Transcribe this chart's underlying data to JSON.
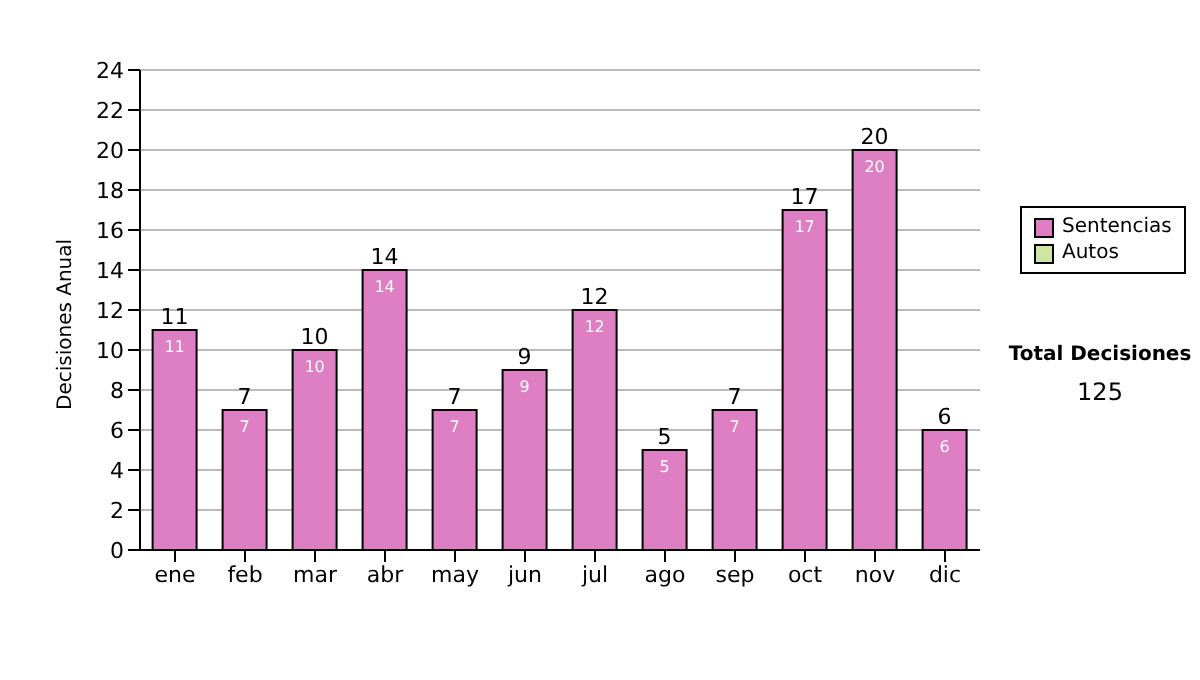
{
  "chart_data": {
    "type": "bar",
    "ylabel": "Decisiones Anual",
    "categories": [
      "ene",
      "feb",
      "mar",
      "abr",
      "may",
      "jun",
      "jul",
      "ago",
      "sep",
      "oct",
      "nov",
      "dic"
    ],
    "series": [
      {
        "name": "Sentencias",
        "color": "#de7fc4",
        "values": [
          11,
          7,
          10,
          14,
          7,
          9,
          12,
          5,
          7,
          17,
          20,
          6
        ],
        "value_labels": [
          "11",
          "7",
          "10",
          "14",
          "7",
          "9",
          "12",
          "5",
          "7",
          "17",
          "20",
          "6"
        ]
      },
      {
        "name": "Autos",
        "color": "#cfe6a0",
        "values": [
          null,
          null,
          null,
          null,
          null,
          null,
          null,
          null,
          null,
          null,
          null,
          null
        ]
      }
    ],
    "stacked": true,
    "totals": [
      "11",
      "7",
      "10",
      "14",
      "7",
      "9",
      "12",
      "5",
      "7",
      "17",
      "20",
      "6"
    ],
    "ylim": [
      0,
      24
    ],
    "yticks": [
      0,
      2,
      4,
      6,
      8,
      10,
      12,
      14,
      16,
      18,
      20,
      22,
      24
    ],
    "grid": "y",
    "legend": "right",
    "annotations": [
      "Total Decisiones",
      "125"
    ]
  }
}
